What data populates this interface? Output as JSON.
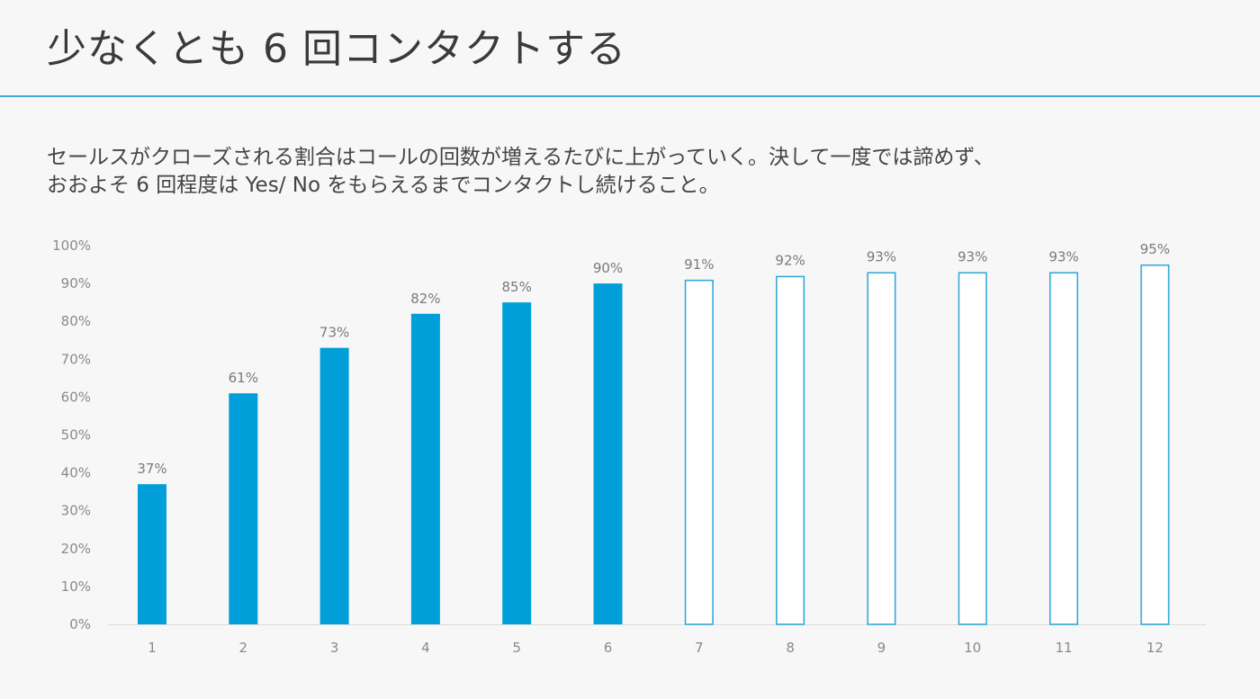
{
  "title": "少なくとも 6 回コンタクトする",
  "description": {
    "line1": "セールスがクローズされる割合はコールの回数が増えるたびに上がっていく。決して一度では諦めず、",
    "line2": "おおよそ 6 回程度は Yes/ No をもらえるまでコンタクトし続けること。"
  },
  "colors": {
    "accent": "#009fda",
    "rule": "#44a9d8",
    "outline": "#2aa6d6"
  },
  "chart_data": {
    "type": "bar",
    "title": "",
    "xlabel": "",
    "ylabel": "",
    "ylim": [
      0,
      100
    ],
    "yticks": [
      "0%",
      "10%",
      "20%",
      "30%",
      "40%",
      "50%",
      "60%",
      "70%",
      "80%",
      "90%",
      "100%"
    ],
    "categories": [
      "1",
      "2",
      "3",
      "4",
      "5",
      "6",
      "7",
      "8",
      "9",
      "10",
      "11",
      "12"
    ],
    "values": [
      37,
      61,
      73,
      82,
      85,
      90,
      91,
      92,
      93,
      93,
      93,
      95
    ],
    "labels": [
      "37%",
      "61%",
      "73%",
      "82%",
      "85%",
      "90%",
      "91%",
      "92%",
      "93%",
      "93%",
      "93%",
      "95%"
    ],
    "filled": [
      true,
      true,
      true,
      true,
      true,
      true,
      false,
      false,
      false,
      false,
      false,
      false
    ],
    "grid": false
  }
}
